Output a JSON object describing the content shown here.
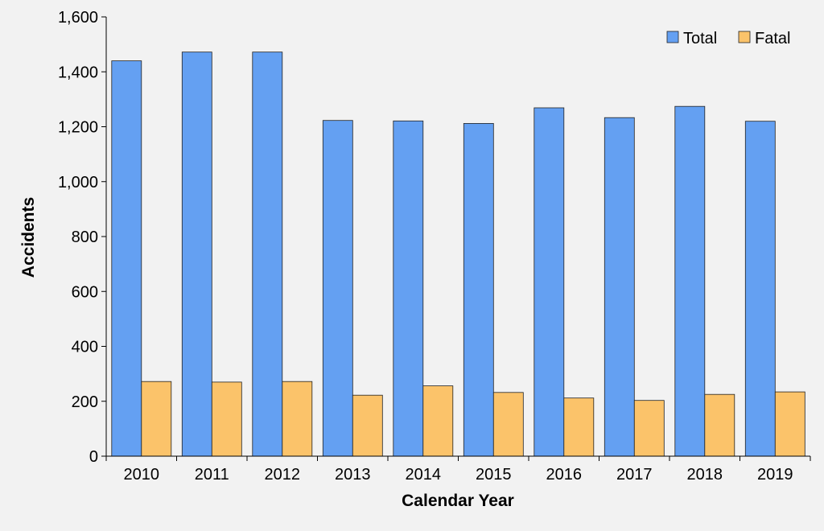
{
  "chart_data": {
    "type": "bar",
    "title": "",
    "xlabel": "Calendar Year",
    "ylabel": "Accidents",
    "categories": [
      "2010",
      "2011",
      "2012",
      "2013",
      "2014",
      "2015",
      "2016",
      "2017",
      "2018",
      "2019"
    ],
    "series": [
      {
        "name": "Total",
        "color": "#64a0f2",
        "values": [
          1440,
          1472,
          1472,
          1223,
          1221,
          1212,
          1269,
          1233,
          1274,
          1220
        ]
      },
      {
        "name": "Fatal",
        "color": "#fbc36a",
        "values": [
          272,
          270,
          272,
          222,
          256,
          232,
          212,
          203,
          225,
          234
        ]
      }
    ],
    "ylim": [
      0,
      1600
    ],
    "yticks": [
      0,
      200,
      400,
      600,
      800,
      1000,
      1200,
      1400,
      1600
    ],
    "ytick_labels": [
      "0",
      "200",
      "400",
      "600",
      "800",
      "1,000",
      "1,200",
      "1,400",
      "1,600"
    ],
    "grid": false,
    "legend": "top-right",
    "background": "#f2f2f2"
  }
}
